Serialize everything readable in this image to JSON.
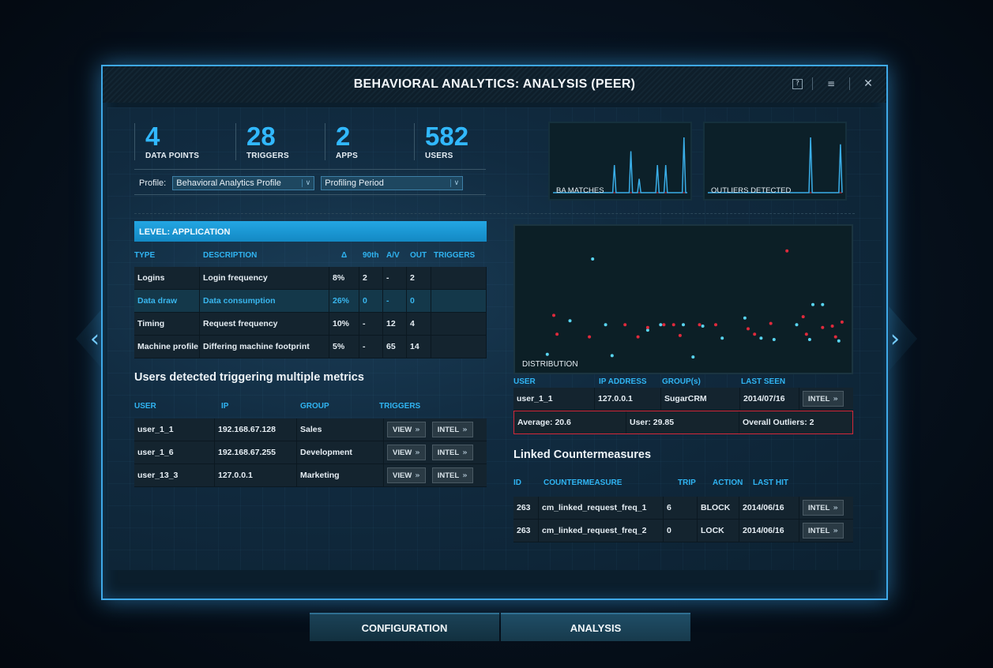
{
  "window": {
    "title": "BEHAVIORAL ANALYTICS: ANALYSIS (PEER)"
  },
  "title_icons": {
    "help": "?",
    "doc": "≡",
    "close": "✕"
  },
  "nav": {
    "left": "‹",
    "right": "›"
  },
  "stats": [
    {
      "value": "4",
      "label": "DATA POINTS"
    },
    {
      "value": "28",
      "label": "TRIGGERS"
    },
    {
      "value": "2",
      "label": "APPS"
    },
    {
      "value": "582",
      "label": "USERS"
    }
  ],
  "profile": {
    "label": "Profile:",
    "selected": "Behavioral Analytics Profile",
    "period": "Profiling Period",
    "chevron": "∨"
  },
  "mini_charts": [
    {
      "label": "BA MATCHES",
      "values": [
        0,
        0,
        0,
        0,
        0,
        0,
        0,
        0,
        0,
        0,
        0,
        0,
        0,
        0,
        0,
        0,
        0,
        0,
        0,
        0,
        0,
        0,
        0,
        0,
        0,
        0,
        0,
        0,
        0,
        0,
        0,
        0,
        0,
        0,
        0,
        0,
        0,
        6,
        0,
        0,
        0,
        0,
        0,
        0,
        0,
        0,
        0,
        9,
        0,
        0,
        0,
        0,
        3,
        0,
        0,
        0,
        0,
        0,
        0,
        0,
        0,
        0,
        0,
        6,
        0,
        0,
        0,
        0,
        6,
        0,
        0,
        0,
        0,
        0,
        0,
        0,
        0,
        0,
        0,
        12,
        0,
        0
      ]
    },
    {
      "label": "OUTLIERS DETECTED",
      "values": [
        0,
        0,
        0,
        0,
        0,
        0,
        0,
        0,
        0,
        0,
        0,
        0,
        0,
        0,
        0,
        0,
        0,
        0,
        0,
        0,
        0,
        0,
        0,
        0,
        0,
        0,
        0,
        0,
        0,
        0,
        0,
        0,
        0,
        0,
        0,
        0,
        0,
        0,
        0,
        0,
        0,
        0,
        0,
        0,
        0,
        0,
        0,
        0,
        0,
        0,
        0,
        0,
        0,
        0,
        0,
        0,
        0,
        0,
        0,
        0,
        0,
        0,
        8,
        0,
        0,
        0,
        0,
        0,
        0,
        0,
        0,
        0,
        0,
        0,
        0,
        0,
        0,
        0,
        0,
        0,
        7,
        0
      ]
    }
  ],
  "level": {
    "title": "LEVEL: APPLICATION",
    "headers": [
      "TYPE",
      "DESCRIPTION",
      "Δ",
      "90th",
      "A/V",
      "OUT",
      "TRIGGERS"
    ],
    "rows": [
      {
        "type": "Logins",
        "description": "Login frequency",
        "delta": "8%",
        "p90": "2",
        "av": "-",
        "out": "2",
        "triggers": ""
      },
      {
        "type": "Data draw",
        "description": "Data consumption",
        "delta": "26%",
        "p90": "0",
        "av": "-",
        "out": "0",
        "triggers": ""
      },
      {
        "type": "Timing",
        "description": "Request frequency",
        "delta": "10%",
        "p90": "-",
        "av": "12",
        "out": "4",
        "triggers": ""
      },
      {
        "type": "Machine profile",
        "description": "Differing machine footprint",
        "delta": "5%",
        "p90": "-",
        "av": "65",
        "out": "14",
        "triggers": ""
      }
    ]
  },
  "users_section": {
    "title": "Users detected triggering multiple metrics",
    "headers": [
      "USER",
      "IP",
      "GROUP",
      "TRIGGERS"
    ],
    "view_label": "VIEW",
    "intel_label": "INTEL",
    "arrow": "»",
    "rows": [
      {
        "user": "user_1_1",
        "ip": "192.168.67.128",
        "group": "Sales"
      },
      {
        "user": "user_1_6",
        "ip": "192.168.67.255",
        "group": "Development"
      },
      {
        "user": "user_13_3",
        "ip": "127.0.0.1",
        "group": "Marketing"
      }
    ]
  },
  "distribution": {
    "label": "DISTRIBUTION",
    "headers": [
      "USER",
      "IP ADDRESS",
      "GROUP(s)",
      "LAST SEEN"
    ],
    "row": {
      "user": "user_1_1",
      "ip": "127.0.0.1",
      "group": "SugarCRM",
      "last_seen": "2014/07/16",
      "intel": "INTEL"
    },
    "summary": {
      "average": "Average: 20.6",
      "user": "User: 29.85",
      "outliers": "Overall Outliers: 2"
    }
  },
  "chart_data": {
    "type": "scatter",
    "title": "",
    "xlabel": "",
    "ylabel": "",
    "xlim": [
      0,
      100
    ],
    "ylim": [
      0,
      100
    ],
    "grid": false,
    "legend": "none",
    "series": [
      {
        "color": "#58d4f0",
        "points": [
          [
            8,
            9
          ],
          [
            22,
            80
          ],
          [
            15,
            34
          ],
          [
            26,
            31
          ],
          [
            28,
            8
          ],
          [
            43,
            31
          ],
          [
            39,
            27
          ],
          [
            50,
            31
          ],
          [
            53,
            7
          ],
          [
            56,
            30
          ],
          [
            62,
            21
          ],
          [
            69,
            36
          ],
          [
            74,
            21
          ],
          [
            78,
            20
          ],
          [
            85,
            31
          ],
          [
            89,
            20
          ],
          [
            93,
            46
          ],
          [
            98,
            19
          ],
          [
            90,
            46
          ]
        ]
      },
      {
        "color": "#e02a3c",
        "points": [
          [
            10,
            38
          ],
          [
            11,
            24
          ],
          [
            21,
            22
          ],
          [
            32,
            31
          ],
          [
            36,
            22
          ],
          [
            39,
            29
          ],
          [
            44,
            31
          ],
          [
            47,
            31
          ],
          [
            49,
            23
          ],
          [
            55,
            31
          ],
          [
            60,
            31
          ],
          [
            70,
            28
          ],
          [
            72,
            24
          ],
          [
            77,
            32
          ],
          [
            82,
            86
          ],
          [
            87,
            37
          ],
          [
            88,
            24
          ],
          [
            93,
            29
          ],
          [
            96,
            30
          ],
          [
            97,
            22
          ],
          [
            99,
            33
          ]
        ]
      }
    ]
  },
  "countermeasures": {
    "title": "Linked Countermeasures",
    "headers": [
      "ID",
      "COUNTERMEASURE",
      "TRIP",
      "ACTION",
      "LAST HIT"
    ],
    "intel_label": "INTEL",
    "rows": [
      {
        "id": "263",
        "name": "cm_linked_request_freq_1",
        "trip": "6",
        "action": "BLOCK",
        "last_hit": "2014/06/16"
      },
      {
        "id": "263",
        "name": "cm_linked_request_freq_2",
        "trip": "0",
        "action": "LOCK",
        "last_hit": "2014/06/16"
      }
    ]
  },
  "tabs": [
    {
      "label": "CONFIGURATION"
    },
    {
      "label": "ANALYSIS"
    }
  ],
  "colors": {
    "accent": "#31b8ff",
    "outlier": "#e02a3c",
    "point": "#58d4f0"
  }
}
